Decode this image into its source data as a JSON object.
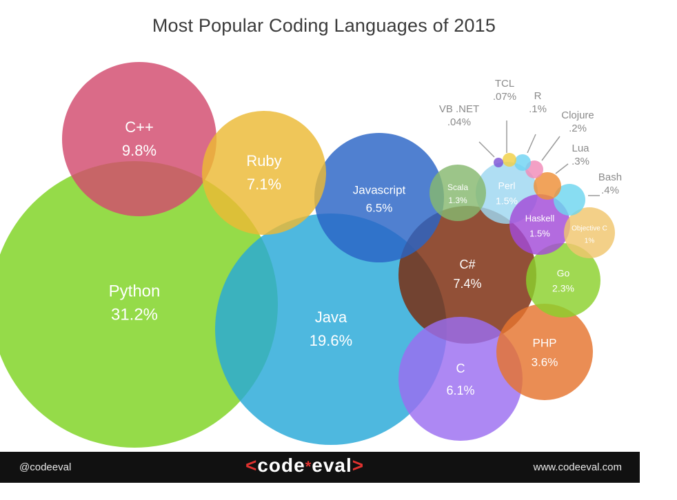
{
  "chart_data": {
    "type": "bubble",
    "title": "Most Popular Coding Languages of 2015",
    "unit": "%",
    "series": [
      {
        "name": "Python",
        "value": "31.2%",
        "color": "#7ed321"
      },
      {
        "name": "Java",
        "value": "19.6%",
        "color": "#27a8d8"
      },
      {
        "name": "C++",
        "value": "9.8%",
        "color": "#d24a6e"
      },
      {
        "name": "C#",
        "value": "7.4%",
        "color": "#7a2a0b"
      },
      {
        "name": "Ruby",
        "value": "7.1%",
        "color": "#ecb934"
      },
      {
        "name": "Javascript",
        "value": "6.5%",
        "color": "#2a64c6"
      },
      {
        "name": "C",
        "value": "6.1%",
        "color": "#9b6ef0"
      },
      {
        "name": "PHP",
        "value": "3.6%",
        "color": "#e5742e"
      },
      {
        "name": "Go",
        "value": "2.3%",
        "color": "#8bd12c"
      },
      {
        "name": "Perl",
        "value": "1.5%",
        "color": "#9ed7f0"
      },
      {
        "name": "Haskell",
        "value": "1.5%",
        "color": "#a24bd8"
      },
      {
        "name": "Scala",
        "value": "1.3%",
        "color": "#86b86f"
      },
      {
        "name": "Objective C",
        "value": "1%",
        "color": "#f0c66e"
      },
      {
        "name": "Bash",
        "value": ".4%",
        "color": "#6ed5ef"
      },
      {
        "name": "Lua",
        "value": ".3%",
        "color": "#ee8f37"
      },
      {
        "name": "Clojure",
        "value": ".2%",
        "color": "#f08bb8"
      },
      {
        "name": "R",
        "value": ".1%",
        "color": "#6fd3f3"
      },
      {
        "name": "TCL",
        "value": ".07%",
        "color": "#f0cf45"
      },
      {
        "name": "VB .NET",
        "value": ".04%",
        "color": "#7c53d6"
      }
    ]
  },
  "footer": {
    "handle": "@codeeval",
    "logo": {
      "left_bracket": "<",
      "word_a": "code",
      "star": "*",
      "word_b": "eval",
      "right_bracket": ">"
    },
    "url": "www.codeeval.com"
  }
}
